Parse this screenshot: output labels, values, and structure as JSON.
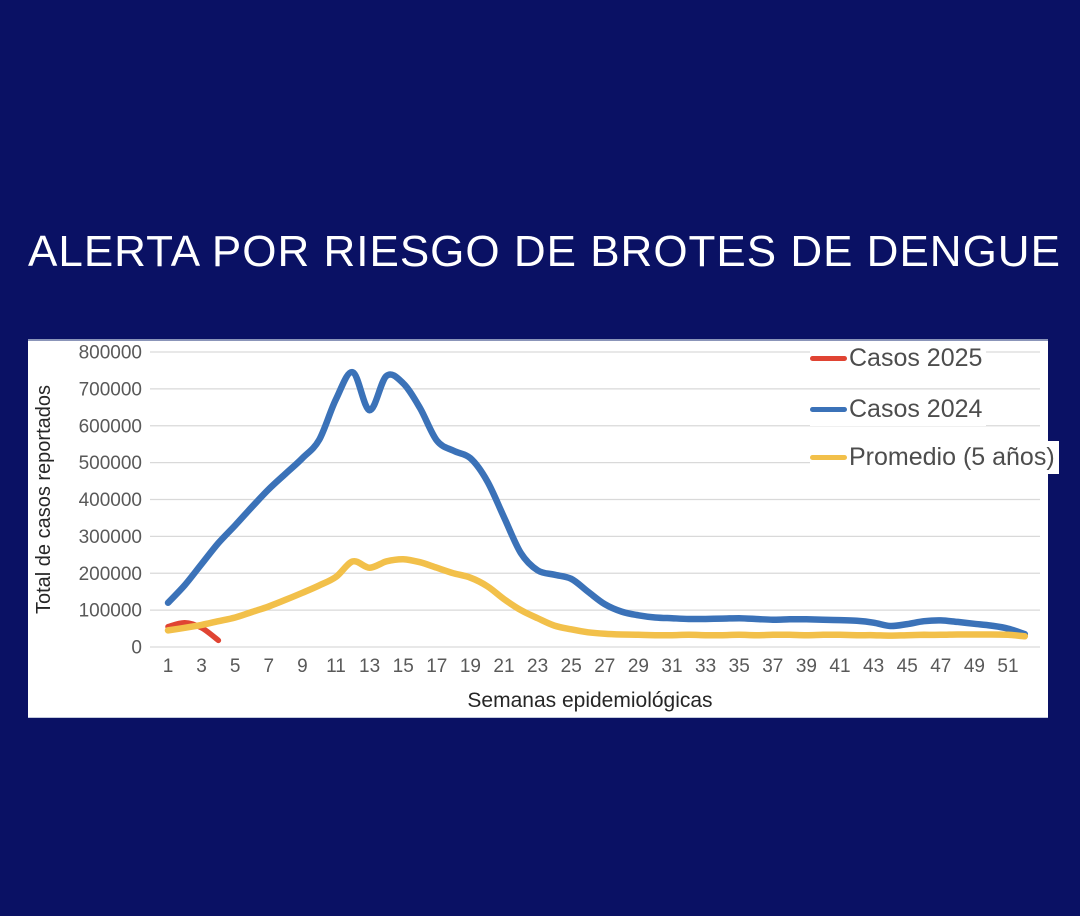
{
  "page": {
    "background_color": "#0a1164",
    "card_color": "#ffffff",
    "title": "ALERTA POR RIESGO DE BROTES DE DENGUE",
    "title_color": "#ffffff"
  },
  "chart_data": {
    "type": "line",
    "title": "",
    "xlabel": "Semanas epidemiológicas",
    "ylabel": "Total de casos reportados",
    "x_ticks": [
      1,
      3,
      5,
      7,
      9,
      11,
      13,
      15,
      17,
      19,
      21,
      23,
      25,
      27,
      29,
      31,
      33,
      35,
      37,
      39,
      41,
      43,
      45,
      47,
      49,
      51
    ],
    "y_ticks": [
      "800000",
      "700000",
      "600000",
      "500000",
      "400000",
      "300000",
      "200000",
      "100000",
      "0"
    ],
    "ylim": [
      0,
      800000
    ],
    "xlim": [
      1,
      53
    ],
    "grid": "horizontal",
    "gridline_color": "#d9d9d9",
    "tick_label_color": "#595959",
    "axis_title_color": "#262626",
    "legend_position": "top-right-inside",
    "series": [
      {
        "name": "Casos 2025",
        "color": "#e04433",
        "x": [
          1,
          2,
          3,
          4
        ],
        "values": [
          55000,
          66000,
          52000,
          18000
        ]
      },
      {
        "name": "Casos 2024",
        "color": "#3b72b8",
        "x": [
          1,
          2,
          3,
          4,
          5,
          6,
          7,
          8,
          9,
          10,
          11,
          12,
          13,
          14,
          15,
          16,
          17,
          18,
          19,
          20,
          21,
          22,
          23,
          24,
          25,
          26,
          27,
          28,
          29,
          30,
          31,
          32,
          33,
          34,
          35,
          36,
          37,
          38,
          39,
          40,
          41,
          42,
          43,
          44,
          45,
          46,
          47,
          48,
          49,
          50,
          51,
          52
        ],
        "values": [
          120000,
          168000,
          225000,
          282000,
          330000,
          380000,
          428000,
          470000,
          512000,
          562000,
          672000,
          745000,
          642000,
          735000,
          715000,
          648000,
          560000,
          532000,
          512000,
          450000,
          352000,
          255000,
          208000,
          196000,
          185000,
          150000,
          116000,
          96000,
          86000,
          80000,
          78000,
          76000,
          76000,
          77000,
          78000,
          76000,
          74000,
          75000,
          75000,
          74000,
          73000,
          71000,
          66000,
          57000,
          62000,
          70000,
          72000,
          68000,
          63000,
          58000,
          50000,
          35000
        ]
      },
      {
        "name": "Promedio (5 años)",
        "color": "#f2c04a",
        "x": [
          1,
          2,
          3,
          4,
          5,
          6,
          7,
          8,
          9,
          10,
          11,
          12,
          13,
          14,
          15,
          16,
          17,
          18,
          19,
          20,
          21,
          22,
          23,
          24,
          25,
          26,
          27,
          28,
          29,
          30,
          31,
          32,
          33,
          34,
          35,
          36,
          37,
          38,
          39,
          40,
          41,
          42,
          43,
          44,
          45,
          46,
          47,
          48,
          49,
          50,
          51,
          52
        ],
        "values": [
          45000,
          52000,
          60000,
          70000,
          80000,
          95000,
          110000,
          128000,
          147000,
          167000,
          190000,
          232000,
          215000,
          232000,
          238000,
          230000,
          215000,
          200000,
          188000,
          165000,
          130000,
          100000,
          78000,
          58000,
          48000,
          40000,
          36000,
          34000,
          33000,
          32000,
          32000,
          33000,
          32000,
          32000,
          33000,
          32000,
          33000,
          33000,
          32000,
          33000,
          33000,
          32000,
          32000,
          31000,
          32000,
          33000,
          33000,
          34000,
          34000,
          34000,
          33000,
          29000
        ]
      }
    ]
  }
}
